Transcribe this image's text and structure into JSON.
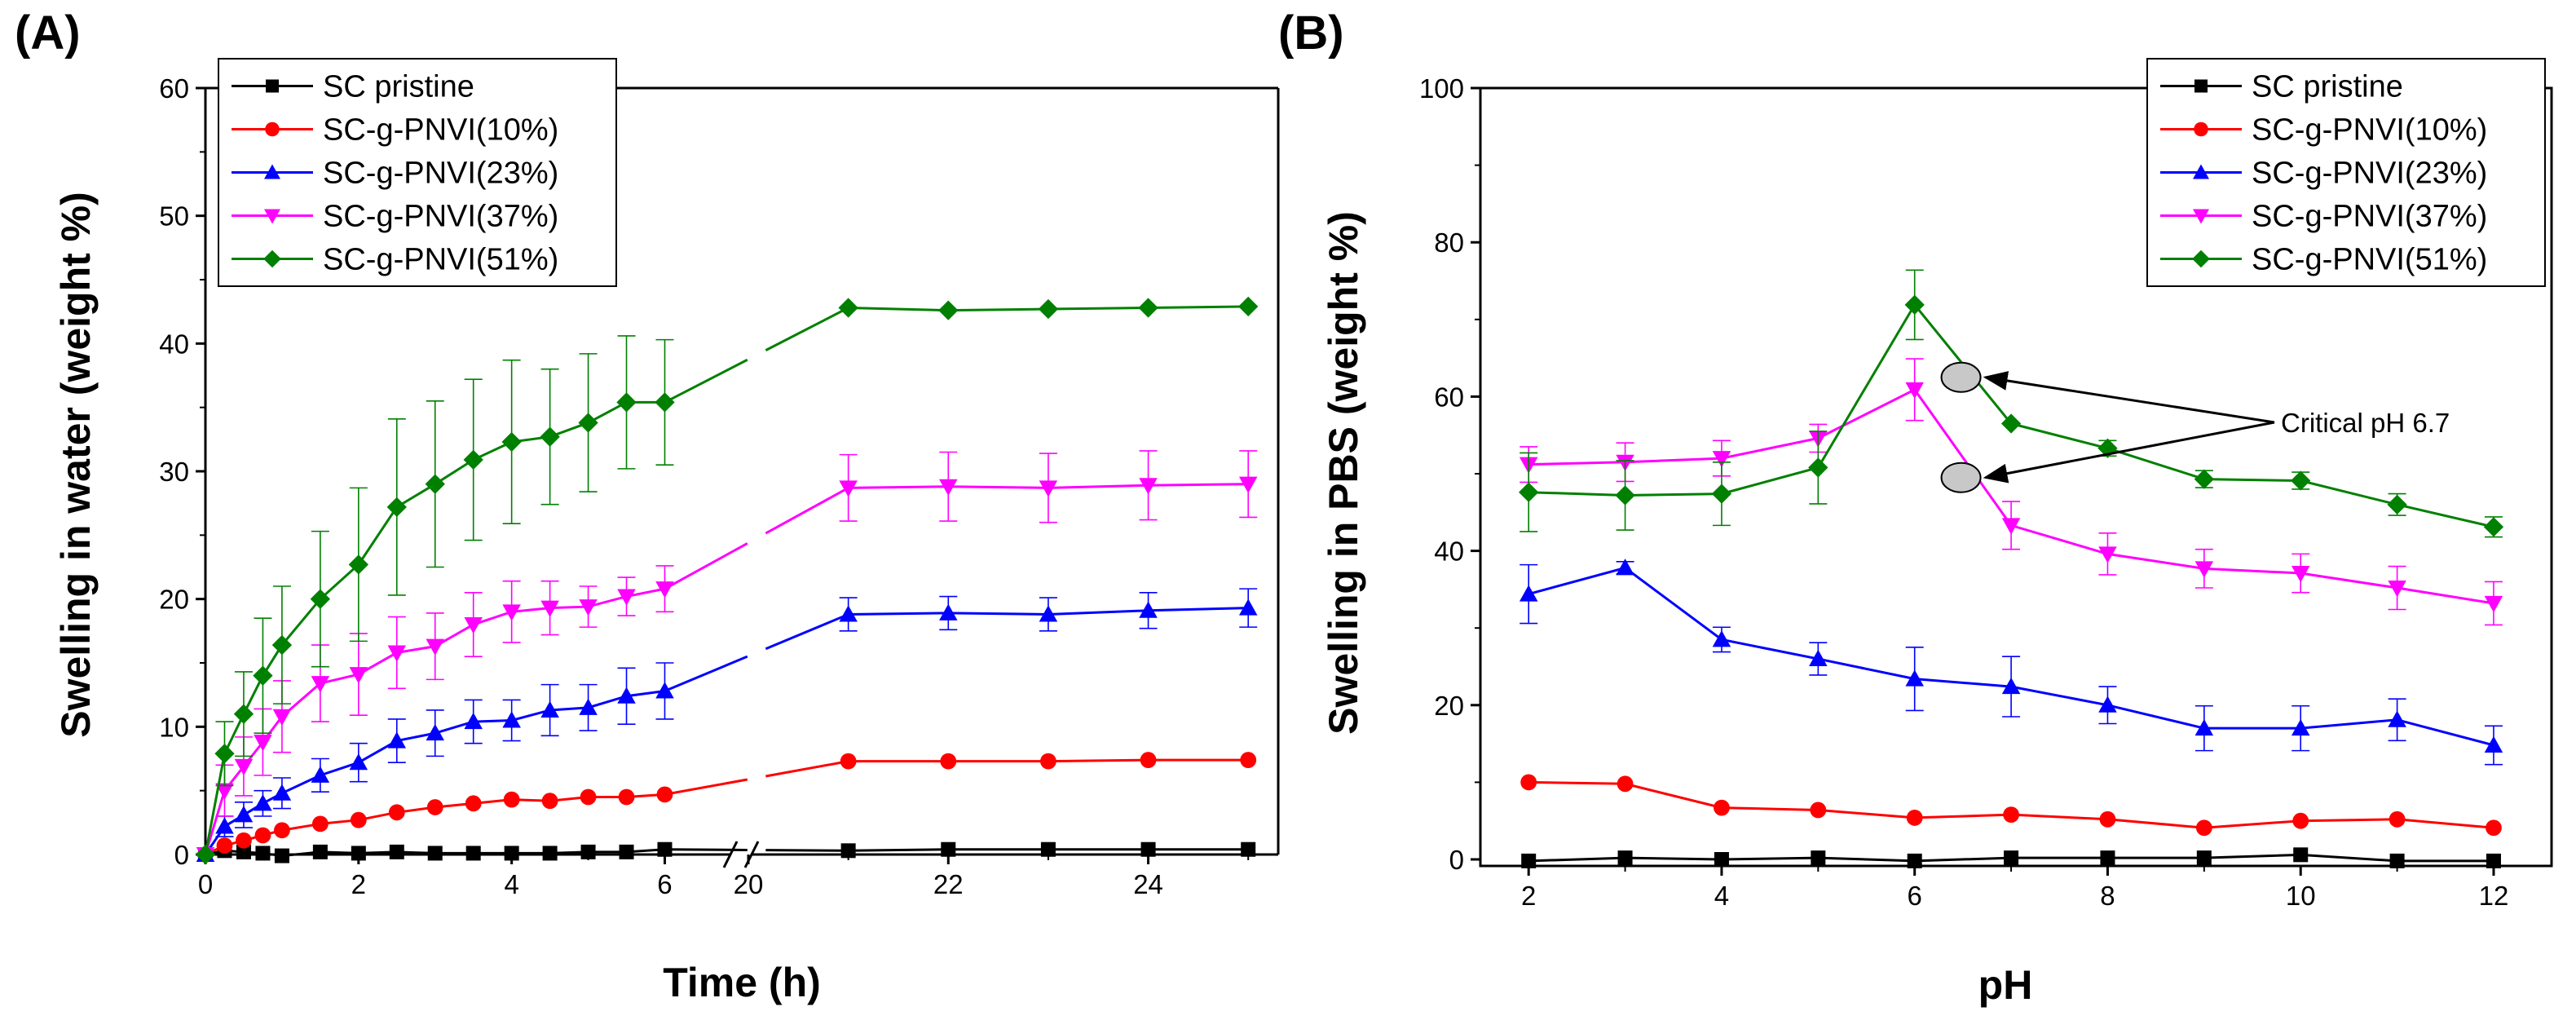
{
  "chart_data": [
    {
      "type": "line",
      "panel_label": "(A)",
      "xlabel": "Time (h)",
      "ylabel": "Swelling in water (weight %)",
      "ylim": [
        0,
        60
      ],
      "yticks": [
        0,
        10,
        20,
        30,
        40,
        50,
        60
      ],
      "axis_break": {
        "from": 6.5,
        "to": 20
      },
      "xlim_segments": [
        [
          0,
          6.9
        ],
        [
          20,
          25.3
        ]
      ],
      "xticks": [
        0,
        2,
        4,
        6,
        20,
        22,
        24
      ],
      "legend_placement": "top-left",
      "grid": false,
      "series": [
        {
          "name": "SC pristine",
          "color": "#000000",
          "marker": "square",
          "x": [
            0,
            0.25,
            0.5,
            0.75,
            1,
            1.5,
            2,
            2.5,
            3,
            3.5,
            4,
            4.5,
            5,
            5.5,
            6,
            21,
            22,
            23,
            24,
            25
          ],
          "y": [
            0,
            0.3,
            0.2,
            0.1,
            -0.1,
            0.2,
            0.1,
            0.2,
            0.1,
            0.1,
            0.1,
            0.1,
            0.2,
            0.2,
            0.4,
            0.3,
            0.4,
            0.4,
            0.4,
            0.4
          ],
          "err": [
            0,
            0,
            0,
            0,
            0,
            0,
            0,
            0,
            0,
            0,
            0,
            0,
            0,
            0,
            0,
            0,
            0,
            0,
            0,
            0
          ]
        },
        {
          "name": "SC-g-PNVI(10%)",
          "color": "#ff0000",
          "marker": "circle",
          "x": [
            0,
            0.25,
            0.5,
            0.75,
            1,
            1.5,
            2,
            2.5,
            3,
            3.5,
            4,
            4.5,
            5,
            5.5,
            6,
            21,
            22,
            23,
            24,
            25
          ],
          "y": [
            0,
            0.7,
            1.1,
            1.5,
            1.9,
            2.4,
            2.7,
            3.3,
            3.7,
            4.0,
            4.3,
            4.2,
            4.5,
            4.5,
            4.7,
            7.3,
            7.3,
            7.3,
            7.4,
            7.4
          ],
          "err": [
            0,
            0,
            0,
            0,
            0,
            0,
            0,
            0,
            0,
            0,
            0,
            0,
            0,
            0,
            0,
            0,
            0,
            0,
            0,
            0
          ]
        },
        {
          "name": "SC-g-PNVI(23%)",
          "color": "#0000ff",
          "marker": "triangle-up",
          "x": [
            0,
            0.25,
            0.5,
            0.75,
            1,
            1.5,
            2,
            2.5,
            3,
            3.5,
            4,
            4.5,
            5,
            5.5,
            6,
            21,
            22,
            23,
            24,
            25
          ],
          "y": [
            0,
            2.2,
            3.1,
            4.0,
            4.8,
            6.2,
            7.2,
            8.9,
            9.5,
            10.4,
            10.5,
            11.3,
            11.5,
            12.4,
            12.8,
            18.8,
            18.9,
            18.8,
            19.1,
            19.3
          ],
          "err": [
            0,
            0.8,
            1.0,
            1.0,
            1.2,
            1.3,
            1.5,
            1.7,
            1.8,
            1.7,
            1.6,
            2.0,
            1.8,
            2.2,
            2.2,
            1.3,
            1.3,
            1.3,
            1.4,
            1.5
          ]
        },
        {
          "name": "SC-g-PNVI(37%)",
          "color": "#ff00ff",
          "marker": "triangle-down",
          "x": [
            0,
            0.25,
            0.5,
            0.75,
            1,
            1.5,
            2,
            2.5,
            3,
            3.5,
            4,
            4.5,
            5,
            5.5,
            6,
            21,
            22,
            23,
            24,
            25
          ],
          "y": [
            0,
            5.0,
            6.9,
            8.8,
            10.8,
            13.4,
            14.1,
            15.8,
            16.3,
            18.0,
            19.0,
            19.3,
            19.4,
            20.2,
            20.8,
            28.7,
            28.8,
            28.7,
            28.9,
            29.0
          ],
          "err": [
            0,
            2.0,
            2.3,
            2.6,
            2.8,
            3.0,
            3.2,
            2.8,
            2.6,
            2.5,
            2.4,
            2.1,
            1.6,
            1.5,
            1.8,
            2.6,
            2.7,
            2.7,
            2.7,
            2.6
          ]
        },
        {
          "name": "SC-g-PNVI(51%)",
          "color": "#008000",
          "marker": "diamond",
          "x": [
            0,
            0.25,
            0.5,
            0.75,
            1,
            1.5,
            2,
            2.5,
            3,
            3.5,
            4,
            4.5,
            5,
            5.5,
            6,
            21,
            22,
            23,
            24,
            25
          ],
          "y": [
            0,
            7.9,
            11.0,
            14.0,
            16.4,
            20.0,
            22.7,
            27.2,
            29.0,
            30.9,
            32.3,
            32.7,
            33.8,
            35.4,
            35.4,
            42.8,
            42.6,
            42.7,
            42.8,
            42.9
          ],
          "err": [
            0,
            2.5,
            3.3,
            4.5,
            4.6,
            5.3,
            6.0,
            6.9,
            6.5,
            6.3,
            6.4,
            5.3,
            5.4,
            5.2,
            4.9,
            0,
            0,
            0,
            0,
            0
          ]
        }
      ]
    },
    {
      "type": "line",
      "panel_label": "(B)",
      "xlabel": "pH",
      "ylabel": "Swelling in PBS (weight %)",
      "ylim": [
        0,
        100
      ],
      "yticks": [
        0,
        20,
        40,
        60,
        80,
        100
      ],
      "xlim": [
        1.5,
        12.6
      ],
      "xticks": [
        2,
        4,
        6,
        8,
        10,
        12
      ],
      "legend_placement": "top-right",
      "grid": false,
      "annotation": {
        "text": "Critical pH 6.7",
        "points": [
          [
            6.7,
            62.5
          ],
          [
            6.7,
            49.5
          ]
        ]
      },
      "series": [
        {
          "name": "SC pristine",
          "color": "#000000",
          "marker": "square",
          "x": [
            2,
            3,
            4,
            5,
            6,
            7,
            8,
            9,
            10,
            11,
            12
          ],
          "y": [
            -0.2,
            0.2,
            0,
            0.2,
            -0.2,
            0.2,
            0.2,
            0.2,
            0.6,
            -0.2,
            -0.2
          ],
          "err": [
            0,
            0,
            0,
            0,
            0,
            0,
            0,
            0,
            0,
            0,
            0
          ]
        },
        {
          "name": "SC-g-PNVI(10%)",
          "color": "#ff0000",
          "marker": "circle",
          "x": [
            2,
            3,
            4,
            5,
            6,
            7,
            8,
            9,
            10,
            11,
            12
          ],
          "y": [
            10.0,
            9.8,
            6.7,
            6.4,
            5.4,
            5.8,
            5.2,
            4.1,
            5.0,
            5.2,
            4.1
          ],
          "err": [
            0,
            0,
            0,
            0,
            0,
            0,
            0,
            0,
            0,
            0,
            0
          ]
        },
        {
          "name": "SC-g-PNVI(23%)",
          "color": "#0000ff",
          "marker": "triangle-up",
          "x": [
            2,
            3,
            4,
            5,
            6,
            7,
            8,
            9,
            10,
            11,
            12
          ],
          "y": [
            34.4,
            37.8,
            28.5,
            26.0,
            23.4,
            22.4,
            20.0,
            17.0,
            17.0,
            18.1,
            14.8
          ],
          "err": [
            3.8,
            0.8,
            1.6,
            2.1,
            4.1,
            3.9,
            2.4,
            2.9,
            2.9,
            2.7,
            2.5
          ]
        },
        {
          "name": "SC-g-PNVI(37%)",
          "color": "#ff00ff",
          "marker": "triangle-down",
          "x": [
            2,
            3,
            4,
            5,
            6,
            7,
            8,
            9,
            10,
            11,
            12
          ],
          "y": [
            51.2,
            51.5,
            52.0,
            54.6,
            60.9,
            43.3,
            39.6,
            37.7,
            37.1,
            35.2,
            33.2
          ],
          "err": [
            2.3,
            2.5,
            2.3,
            1.8,
            4.0,
            3.1,
            2.7,
            2.5,
            2.5,
            2.8,
            2.8
          ]
        },
        {
          "name": "SC-g-PNVI(51%)",
          "color": "#008000",
          "marker": "diamond",
          "x": [
            2,
            3,
            4,
            5,
            6,
            7,
            8,
            9,
            10,
            11,
            12
          ],
          "y": [
            47.6,
            47.2,
            47.4,
            50.8,
            71.9,
            56.5,
            53.3,
            49.3,
            49.1,
            46.0,
            43.1
          ],
          "err": [
            5.1,
            4.5,
            4.1,
            4.7,
            4.5,
            0,
            1.0,
            1.1,
            1.1,
            1.4,
            1.3
          ]
        }
      ]
    }
  ]
}
